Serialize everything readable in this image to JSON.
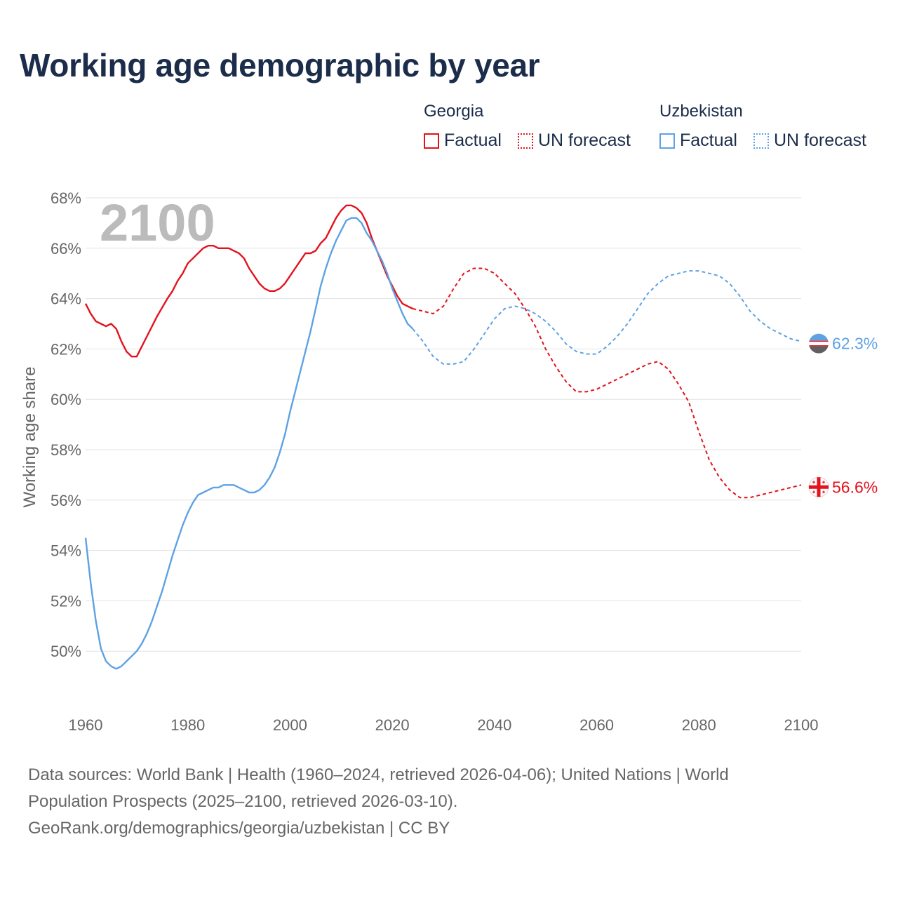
{
  "title": "Working age demographic by year",
  "legend": {
    "georgia_label": "Georgia",
    "uzbekistan_label": "Uzbekistan",
    "factual_label": "Factual",
    "forecast_label": "UN forecast"
  },
  "colors": {
    "georgia": "#e3121c",
    "uzbekistan": "#5ea2e4",
    "grid": "#e2e2e2",
    "axis_text": "#666666",
    "watermark": "#bbbbbb"
  },
  "source": {
    "line1": "Data sources: World Bank | Health (1960–2024, retrieved 2026-04-06); United Nations | World",
    "line2": "Population Prospects (2025–2100, retrieved 2026-03-10).",
    "line3": "GeoRank.org/demographics/georgia/uzbekistan | CC BY"
  },
  "chart_data": {
    "type": "line",
    "year_label": "2100",
    "ylabel": "Working age share",
    "xlim": [
      1960,
      2100
    ],
    "ylim": [
      48,
      68
    ],
    "x_ticks": [
      "1960",
      "1980",
      "2000",
      "2020",
      "2040",
      "2060",
      "2080",
      "2100"
    ],
    "y_ticks": [
      "50%",
      "52%",
      "54%",
      "56%",
      "58%",
      "60%",
      "62%",
      "64%",
      "66%",
      "68%"
    ],
    "series": [
      {
        "name": "Georgia",
        "color": "#e3121c",
        "end_label": "56.6%",
        "factual": {
          "x": [
            1960,
            1961,
            1962,
            1963,
            1964,
            1965,
            1966,
            1967,
            1968,
            1969,
            1970,
            1972,
            1974,
            1976,
            1977,
            1978,
            1979,
            1980,
            1981,
            1982,
            1983,
            1984,
            1985,
            1986,
            1987,
            1988,
            1989,
            1990,
            1991,
            1992,
            1993,
            1994,
            1995,
            1996,
            1997,
            1998,
            1999,
            2000,
            2001,
            2002,
            2003,
            2004,
            2005,
            2006,
            2007,
            2008,
            2009,
            2010,
            2011,
            2012,
            2013,
            2014,
            2015,
            2016,
            2017,
            2018,
            2019,
            2020,
            2021,
            2022,
            2023,
            2024
          ],
          "y": [
            63.8,
            63.4,
            63.1,
            63.0,
            62.9,
            63.0,
            62.8,
            62.3,
            61.9,
            61.7,
            61.7,
            62.5,
            63.3,
            64.0,
            64.3,
            64.7,
            65.0,
            65.4,
            65.6,
            65.8,
            66.0,
            66.1,
            66.1,
            66.0,
            66.0,
            66.0,
            65.9,
            65.8,
            65.6,
            65.2,
            64.9,
            64.6,
            64.4,
            64.3,
            64.3,
            64.4,
            64.6,
            64.9,
            65.2,
            65.5,
            65.8,
            65.8,
            65.9,
            66.2,
            66.4,
            66.8,
            67.2,
            67.5,
            67.7,
            67.7,
            67.6,
            67.4,
            67.0,
            66.4,
            65.9,
            65.4,
            64.9,
            64.5,
            64.1,
            63.8,
            63.7,
            63.6
          ]
        },
        "forecast": {
          "x": [
            2024,
            2026,
            2028,
            2030,
            2032,
            2034,
            2036,
            2038,
            2040,
            2042,
            2044,
            2046,
            2048,
            2050,
            2052,
            2054,
            2056,
            2058,
            2060,
            2062,
            2064,
            2066,
            2068,
            2070,
            2072,
            2074,
            2076,
            2078,
            2080,
            2082,
            2084,
            2086,
            2088,
            2090,
            2092,
            2094,
            2096,
            2098,
            2100
          ],
          "y": [
            63.6,
            63.5,
            63.4,
            63.7,
            64.4,
            65.0,
            65.2,
            65.2,
            65.0,
            64.6,
            64.2,
            63.6,
            62.9,
            62.0,
            61.3,
            60.7,
            60.3,
            60.3,
            60.4,
            60.6,
            60.8,
            61.0,
            61.2,
            61.4,
            61.5,
            61.2,
            60.6,
            59.9,
            58.7,
            57.6,
            56.9,
            56.4,
            56.1,
            56.1,
            56.2,
            56.3,
            56.4,
            56.5,
            56.6
          ]
        }
      },
      {
        "name": "Uzbekistan",
        "color": "#5ea2e4",
        "end_label": "62.3%",
        "factual": {
          "x": [
            1960,
            1961,
            1962,
            1963,
            1964,
            1965,
            1966,
            1967,
            1968,
            1969,
            1970,
            1971,
            1972,
            1973,
            1974,
            1975,
            1976,
            1977,
            1978,
            1979,
            1980,
            1981,
            1982,
            1983,
            1984,
            1985,
            1986,
            1987,
            1988,
            1989,
            1990,
            1991,
            1992,
            1993,
            1994,
            1995,
            1996,
            1997,
            1998,
            1999,
            2000,
            2001,
            2002,
            2003,
            2004,
            2005,
            2006,
            2007,
            2008,
            2009,
            2010,
            2011,
            2012,
            2013,
            2014,
            2015,
            2016,
            2017,
            2018,
            2019,
            2020,
            2021,
            2022,
            2023,
            2024
          ],
          "y": [
            54.5,
            52.7,
            51.2,
            50.1,
            49.6,
            49.4,
            49.3,
            49.4,
            49.6,
            49.8,
            50.0,
            50.3,
            50.7,
            51.2,
            51.8,
            52.4,
            53.1,
            53.8,
            54.4,
            55.0,
            55.5,
            55.9,
            56.2,
            56.3,
            56.4,
            56.5,
            56.5,
            56.6,
            56.6,
            56.6,
            56.5,
            56.4,
            56.3,
            56.3,
            56.4,
            56.6,
            56.9,
            57.3,
            57.9,
            58.6,
            59.5,
            60.3,
            61.1,
            61.9,
            62.7,
            63.6,
            64.5,
            65.2,
            65.8,
            66.3,
            66.7,
            67.1,
            67.2,
            67.2,
            67.0,
            66.6,
            66.3,
            65.9,
            65.5,
            65.0,
            64.4,
            63.9,
            63.4,
            63.0,
            62.8
          ]
        },
        "forecast": {
          "x": [
            2024,
            2026,
            2028,
            2030,
            2032,
            2034,
            2036,
            2038,
            2040,
            2042,
            2044,
            2046,
            2048,
            2050,
            2052,
            2054,
            2056,
            2058,
            2060,
            2062,
            2064,
            2066,
            2068,
            2070,
            2072,
            2074,
            2076,
            2078,
            2080,
            2082,
            2084,
            2086,
            2088,
            2090,
            2092,
            2094,
            2096,
            2098,
            2100
          ],
          "y": [
            62.8,
            62.3,
            61.7,
            61.4,
            61.4,
            61.5,
            62.0,
            62.6,
            63.2,
            63.6,
            63.7,
            63.6,
            63.4,
            63.1,
            62.7,
            62.2,
            61.9,
            61.8,
            61.8,
            62.1,
            62.5,
            63.0,
            63.6,
            64.2,
            64.6,
            64.9,
            65.0,
            65.1,
            65.1,
            65.0,
            64.9,
            64.6,
            64.1,
            63.5,
            63.1,
            62.8,
            62.6,
            62.4,
            62.3
          ]
        }
      }
    ]
  }
}
